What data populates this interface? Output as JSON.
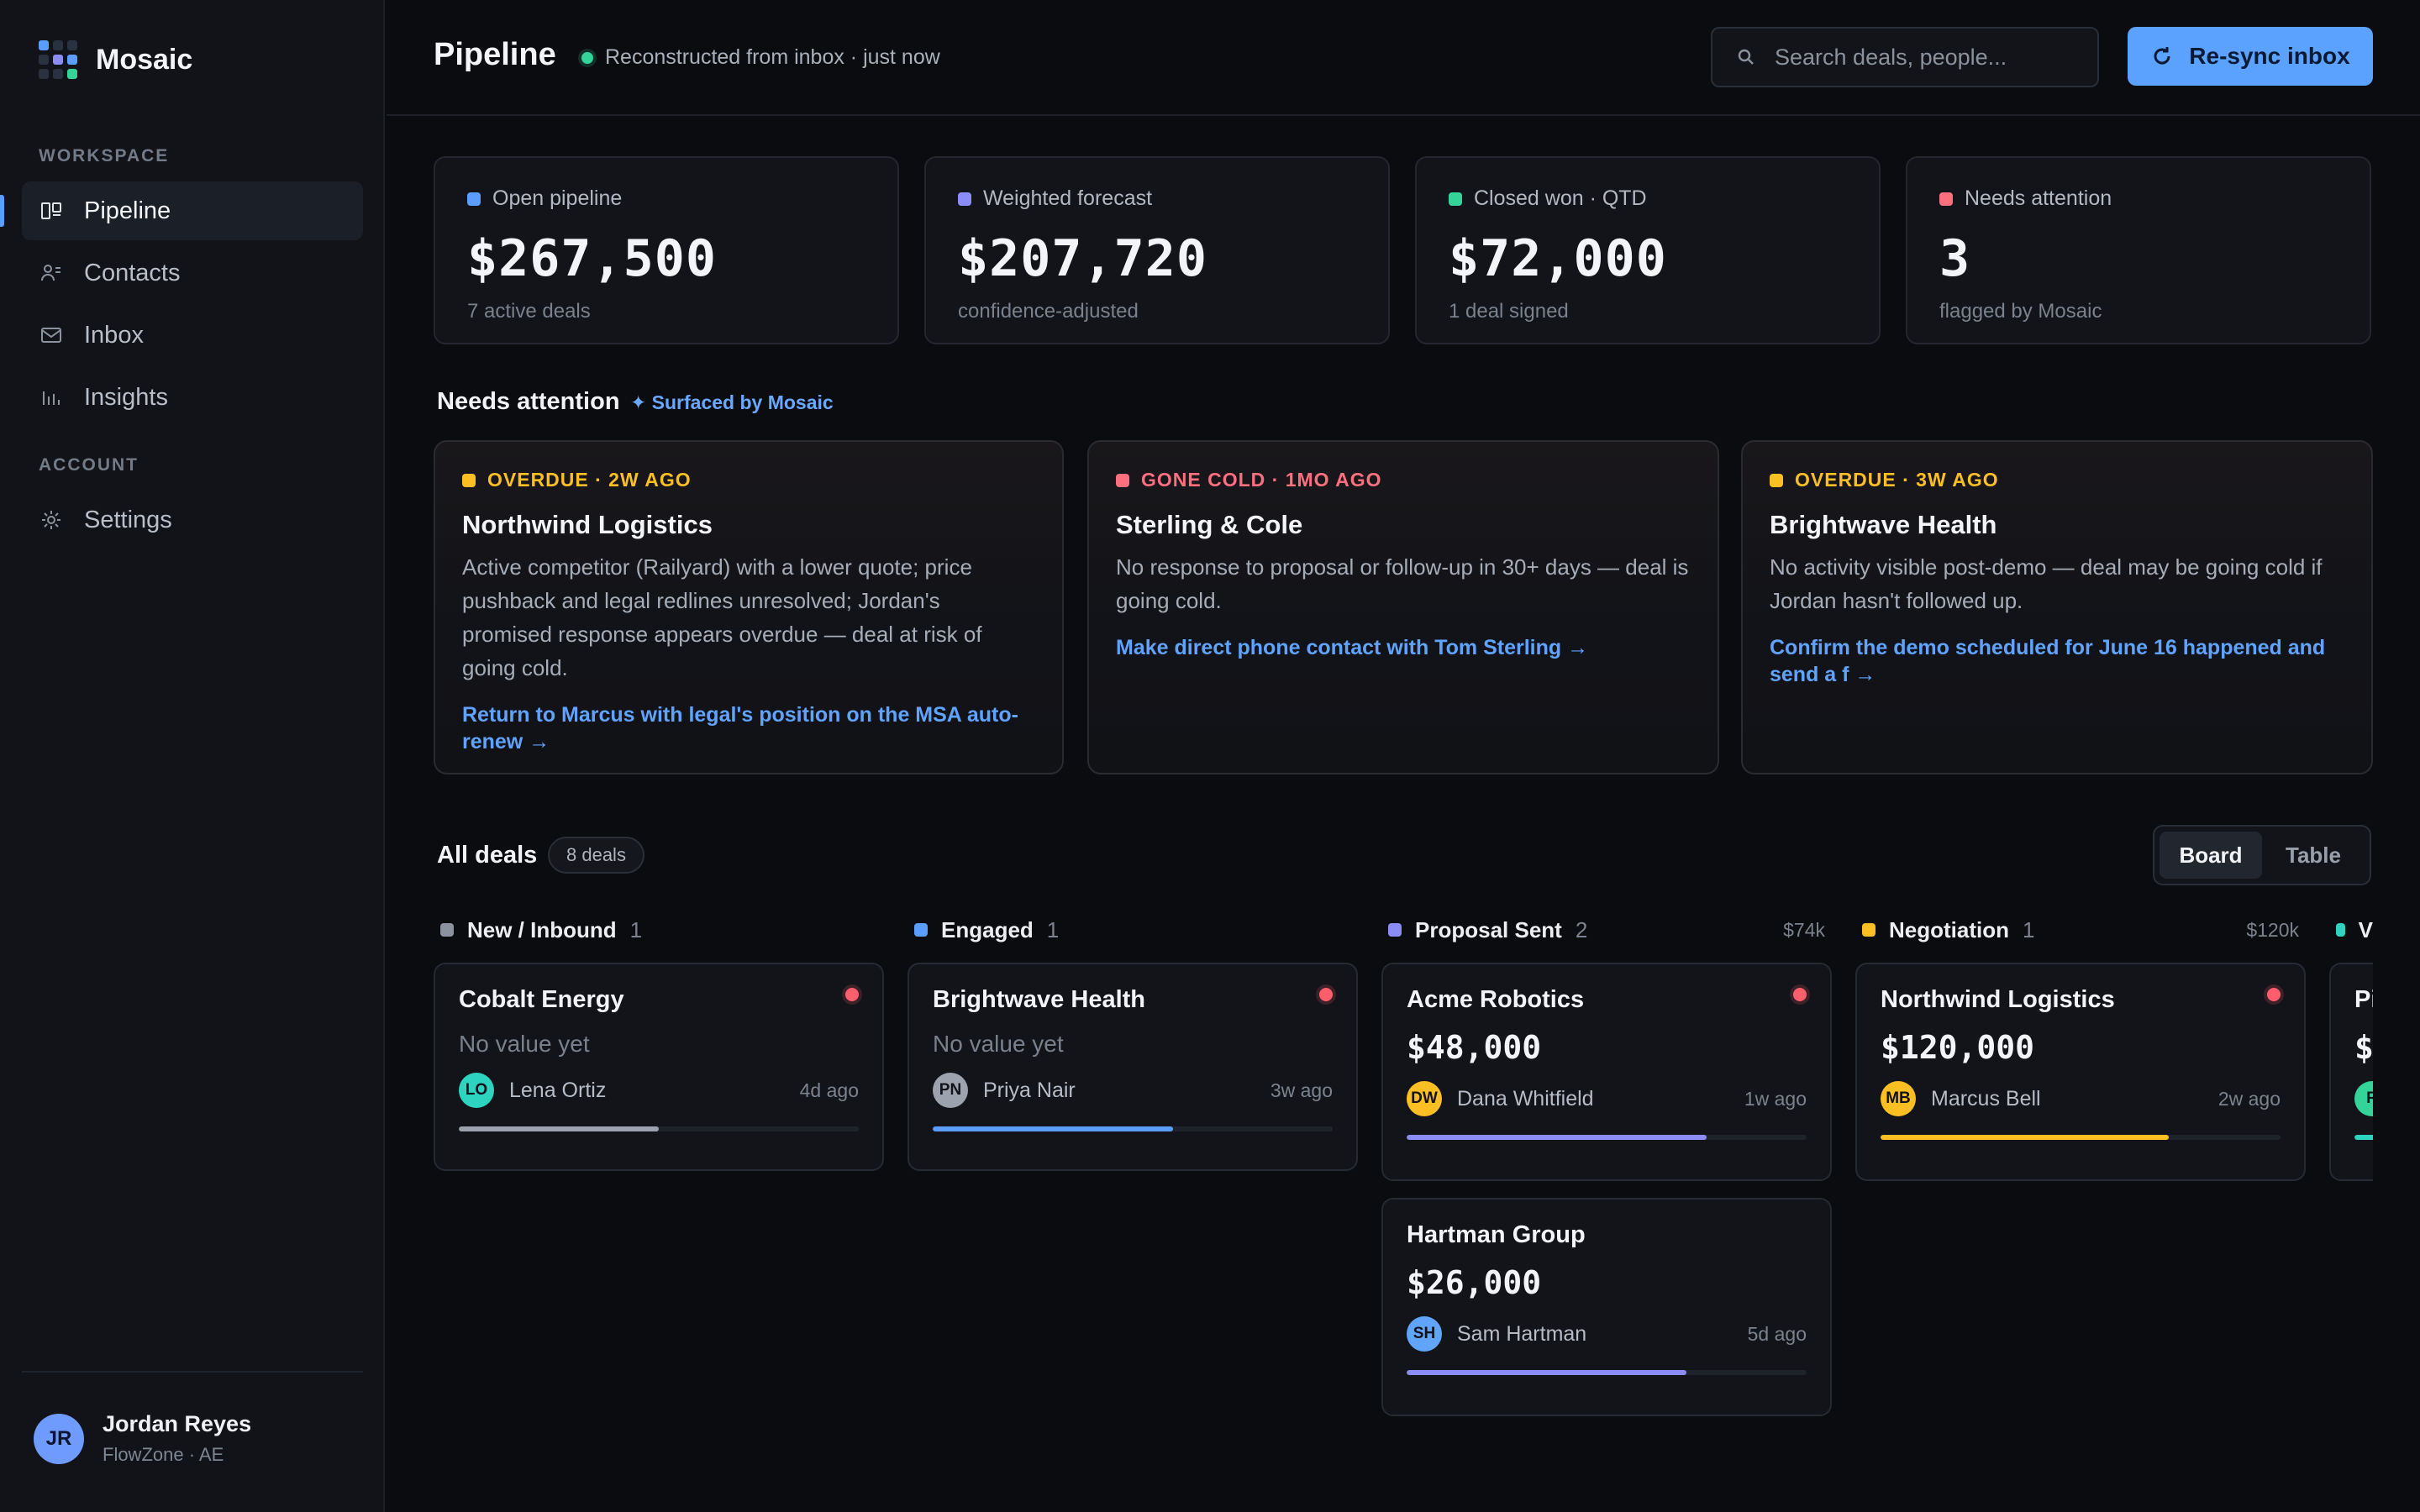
{
  "app": {
    "name": "Mosaic"
  },
  "sidebar": {
    "workspace_label": "WORKSPACE",
    "account_label": "ACCOUNT",
    "items": [
      {
        "label": "Pipeline",
        "icon": "kanban-icon"
      },
      {
        "label": "Contacts",
        "icon": "contacts-icon"
      },
      {
        "label": "Inbox",
        "icon": "mail-icon"
      },
      {
        "label": "Insights",
        "icon": "bar-chart-icon"
      },
      {
        "label": "Settings",
        "icon": "gear-icon"
      }
    ],
    "user": {
      "initials": "JR",
      "name": "Jordan Reyes",
      "org": "FlowZone · AE"
    }
  },
  "header": {
    "title": "Pipeline",
    "status": "Reconstructed from inbox · just now",
    "search_placeholder": "Search deals, people...",
    "resync_label": "Re-sync inbox"
  },
  "stats": [
    {
      "label": "Open pipeline",
      "value": "$267,500",
      "sub": "7 active deals",
      "color": "#5b9cff"
    },
    {
      "label": "Weighted forecast",
      "value": "$207,720",
      "sub": "confidence-adjusted",
      "color": "#8b8cf6"
    },
    {
      "label": "Closed won · QTD",
      "value": "$72,000",
      "sub": "1 deal signed",
      "color": "#34d399"
    },
    {
      "label": "Needs attention",
      "value": "3",
      "sub": "flagged by Mosaic",
      "color": "#fb6f7e"
    }
  ],
  "attention": {
    "title": "Needs attention",
    "surfaced": "✦ Surfaced by Mosaic",
    "items": [
      {
        "tag": "OVERDUE · 2W AGO",
        "tag_color": "#fbbf24",
        "title": "Northwind Logistics",
        "body": "Active competitor (Railyard) with a lower quote; price pushback and legal redlines unresolved; Jordan's promised response appears overdue — deal at risk of going cold.",
        "action": "Return to Marcus with legal's position on the MSA auto-renew →"
      },
      {
        "tag": "GONE COLD · 1MO AGO",
        "tag_color": "#fb6f7e",
        "title": "Sterling & Cole",
        "body": "No response to proposal or follow-up in 30+ days — deal is going cold.",
        "action": "Make direct phone contact with Tom Sterling →"
      },
      {
        "tag": "OVERDUE · 3W AGO",
        "tag_color": "#fbbf24",
        "title": "Brightwave Health",
        "body": "No activity visible post-demo — deal may be going cold if Jordan hasn't followed up.",
        "action": "Confirm the demo scheduled for June 16 happened and send a f →"
      }
    ]
  },
  "deals": {
    "title": "All deals",
    "count": "8 deals",
    "view_options": [
      "Board",
      "Table"
    ],
    "active_view": "Board",
    "columns": [
      {
        "name": "New / Inbound",
        "count": "1",
        "total": "",
        "color": "#8d939e"
      },
      {
        "name": "Engaged",
        "count": "1",
        "total": "",
        "color": "#5b9cff"
      },
      {
        "name": "Proposal Sent",
        "count": "2",
        "total": "$74k",
        "color": "#8b8cf6"
      },
      {
        "name": "Negotiation",
        "count": "1",
        "total": "$120k",
        "color": "#fbbf24"
      },
      {
        "name": "V",
        "count": "",
        "total": "",
        "color": "#2dd4bf"
      }
    ],
    "cards": [
      {
        "name": "Cobalt Energy",
        "value": "No value yet",
        "has_value": false,
        "flag": true,
        "initials": "LO",
        "owner": "Lena Ortiz",
        "age": "4d ago",
        "avatar_color": "#2dd4bf",
        "progress": 0.5,
        "bar_color": "#9ca3af"
      },
      {
        "name": "Brightwave Health",
        "value": "No value yet",
        "has_value": false,
        "flag": true,
        "initials": "PN",
        "owner": "Priya Nair",
        "age": "3w ago",
        "avatar_color": "#9ca3af",
        "progress": 0.6,
        "bar_color": "#5b9cff"
      },
      {
        "name": "Acme Robotics",
        "value": "$48,000",
        "has_value": true,
        "flag": true,
        "initials": "DW",
        "owner": "Dana Whitfield",
        "age": "1w ago",
        "avatar_color": "#fbbf24",
        "progress": 0.75,
        "bar_color": "#8b8cf6"
      },
      {
        "name": "Hartman Group",
        "value": "$26,000",
        "has_value": true,
        "flag": false,
        "initials": "SH",
        "owner": "Sam Hartman",
        "age": "5d ago",
        "avatar_color": "#60a5fa",
        "progress": 0.7,
        "bar_color": "#8b8cf6"
      },
      {
        "name": "Northwind Logistics",
        "value": "$120,000",
        "has_value": true,
        "flag": true,
        "initials": "MB",
        "owner": "Marcus Bell",
        "age": "2w ago",
        "avatar_color": "#fbbf24",
        "progress": 0.72,
        "bar_color": "#fbbf24"
      },
      {
        "name": "Pi",
        "value": "$",
        "has_value": true,
        "flag": false,
        "initials": "R",
        "owner": "",
        "age": "",
        "avatar_color": "#34d399",
        "progress": 0.5,
        "bar_color": "#2dd4bf"
      }
    ]
  }
}
